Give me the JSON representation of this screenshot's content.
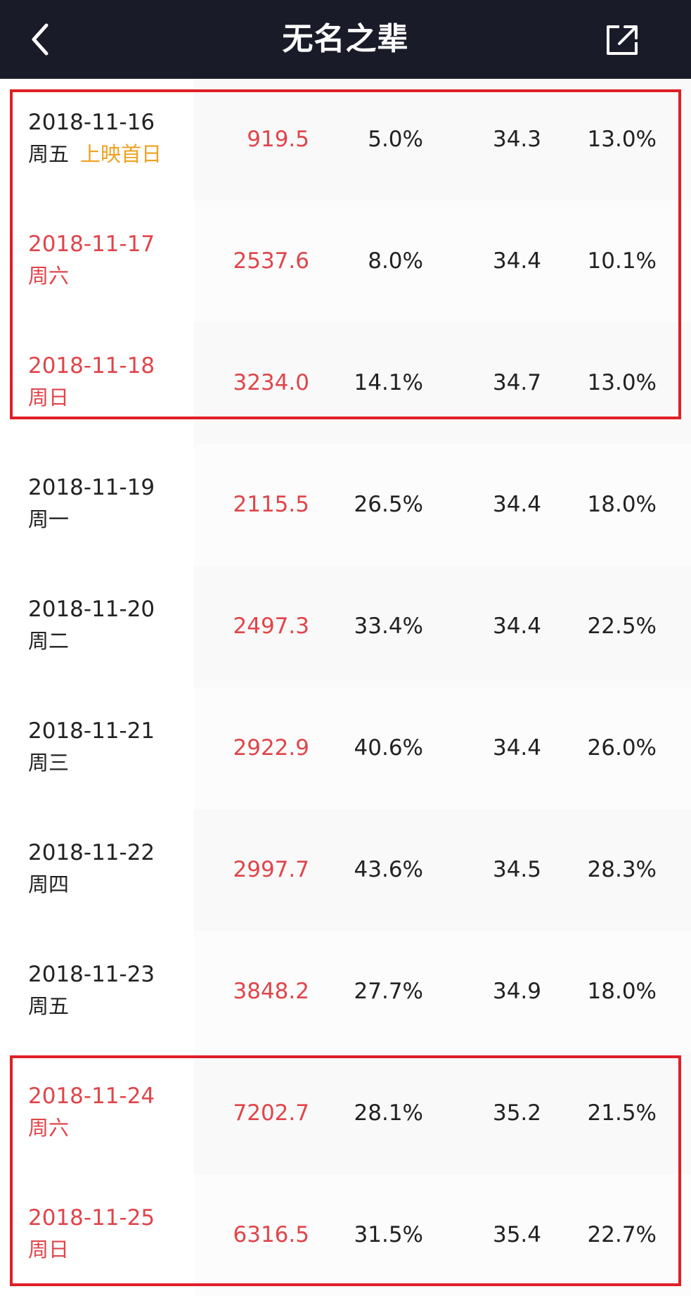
{
  "header": {
    "title": "无名之辈",
    "back_icon": "chevron-left-icon",
    "share_icon": "share-icon"
  },
  "colors": {
    "navbar_bg": "#1a1b29",
    "weekend_red": "#e0454a",
    "tag_orange": "#f0a020",
    "highlight_border": "#e01f26"
  },
  "rows": [
    {
      "date": "2018-11-16",
      "weekday": "周五",
      "tag": "上映首日",
      "box_office": "919.5",
      "share": "5.0%",
      "avg_price": "34.3",
      "rate": "13.0%",
      "weekend": false
    },
    {
      "date": "2018-11-17",
      "weekday": "周六",
      "tag": "",
      "box_office": "2537.6",
      "share": "8.0%",
      "avg_price": "34.4",
      "rate": "10.1%",
      "weekend": true
    },
    {
      "date": "2018-11-18",
      "weekday": "周日",
      "tag": "",
      "box_office": "3234.0",
      "share": "14.1%",
      "avg_price": "34.7",
      "rate": "13.0%",
      "weekend": true
    },
    {
      "date": "2018-11-19",
      "weekday": "周一",
      "tag": "",
      "box_office": "2115.5",
      "share": "26.5%",
      "avg_price": "34.4",
      "rate": "18.0%",
      "weekend": false
    },
    {
      "date": "2018-11-20",
      "weekday": "周二",
      "tag": "",
      "box_office": "2497.3",
      "share": "33.4%",
      "avg_price": "34.4",
      "rate": "22.5%",
      "weekend": false
    },
    {
      "date": "2018-11-21",
      "weekday": "周三",
      "tag": "",
      "box_office": "2922.9",
      "share": "40.6%",
      "avg_price": "34.4",
      "rate": "26.0%",
      "weekend": false
    },
    {
      "date": "2018-11-22",
      "weekday": "周四",
      "tag": "",
      "box_office": "2997.7",
      "share": "43.6%",
      "avg_price": "34.5",
      "rate": "28.3%",
      "weekend": false
    },
    {
      "date": "2018-11-23",
      "weekday": "周五",
      "tag": "",
      "box_office": "3848.2",
      "share": "27.7%",
      "avg_price": "34.9",
      "rate": "18.0%",
      "weekend": false
    },
    {
      "date": "2018-11-24",
      "weekday": "周六",
      "tag": "",
      "box_office": "7202.7",
      "share": "28.1%",
      "avg_price": "35.2",
      "rate": "21.5%",
      "weekend": true
    },
    {
      "date": "2018-11-25",
      "weekday": "周日",
      "tag": "",
      "box_office": "6316.5",
      "share": "31.5%",
      "avg_price": "35.4",
      "rate": "22.7%",
      "weekend": true
    }
  ]
}
